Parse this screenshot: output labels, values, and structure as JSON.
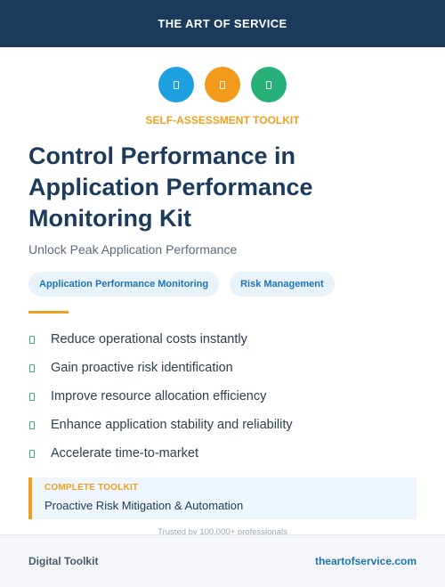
{
  "header": {
    "brand": "THE ART OF SERVICE"
  },
  "icons": [
    {
      "name": "blue-badge-icon",
      "color": "#1ea0e0"
    },
    {
      "name": "orange-badge-icon",
      "color": "#f39a1c"
    },
    {
      "name": "green-badge-icon",
      "color": "#27b07a"
    }
  ],
  "eyebrow": "SELF-ASSESSMENT TOOLKIT",
  "title": {
    "line1": "Control Performance in",
    "line2": "Application Performance",
    "line3": "Monitoring Kit"
  },
  "subtitle": "Unlock Peak Application Performance",
  "tags": [
    "Application Performance Monitoring",
    "Risk Management"
  ],
  "benefits": [
    "Reduce operational costs instantly",
    "Gain proactive risk identification",
    "Improve resource allocation efficiency",
    "Enhance application stability and reliability",
    "Accelerate time-to-market"
  ],
  "callout": {
    "label": "COMPLETE TOOLKIT",
    "value": "Proactive Risk Mitigation & Automation"
  },
  "trusted": "Trusted by 100,000+ professionals",
  "footer": {
    "left": "Digital Toolkit",
    "right": "theartofservice.com"
  },
  "colors": {
    "navy": "#1c3a5c",
    "accent": "#f0a020",
    "link": "#1f73b7",
    "check": "#2bb673"
  }
}
